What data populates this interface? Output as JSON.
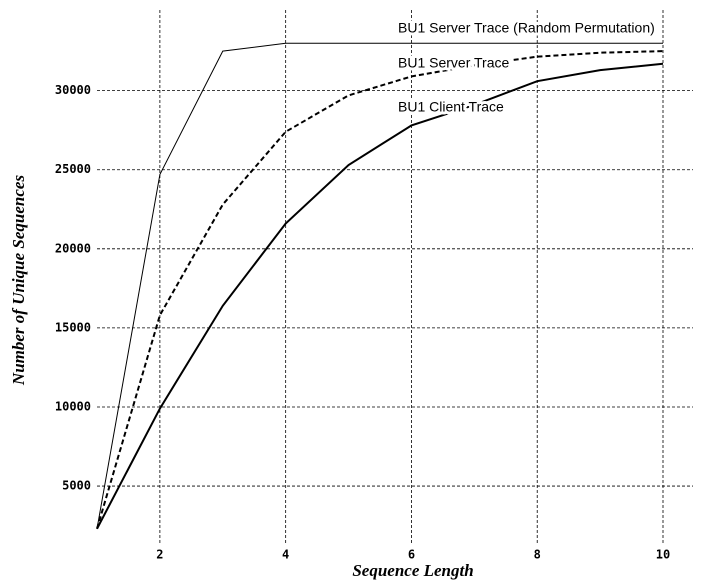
{
  "chart_data": {
    "type": "line",
    "x_label": "Sequence Length",
    "y_label": "Number of Unique Sequences",
    "x": [
      1,
      2,
      3,
      4,
      5,
      6,
      7,
      8,
      9,
      10
    ],
    "series": [
      {
        "name": "BU1 Server Trace (Random Permutation)",
        "color": "#000000",
        "dashed": false,
        "line_width": 1,
        "values": [
          2300,
          24700,
          32500,
          33000,
          33000,
          33000,
          33000,
          33000,
          33000,
          33000
        ]
      },
      {
        "name": "BU1 Server Trace",
        "color": "#000000",
        "dashed": true,
        "line_width": 2,
        "values": [
          2300,
          15800,
          22800,
          27400,
          29700,
          30900,
          31600,
          32150,
          32400,
          32500
        ]
      },
      {
        "name": "BU1 Client Trace",
        "color": "#000000",
        "dashed": false,
        "line_width": 2,
        "values": [
          2300,
          9900,
          16400,
          21600,
          25300,
          27800,
          29100,
          30600,
          31300,
          31700
        ]
      }
    ],
    "xlim": [
      1,
      10
    ],
    "xticks": [
      2,
      4,
      6,
      8,
      10
    ],
    "ylim": [
      1400,
      35100
    ],
    "yticks": [
      5000,
      10000,
      15000,
      20000,
      25000,
      30000
    ],
    "grid": true
  }
}
